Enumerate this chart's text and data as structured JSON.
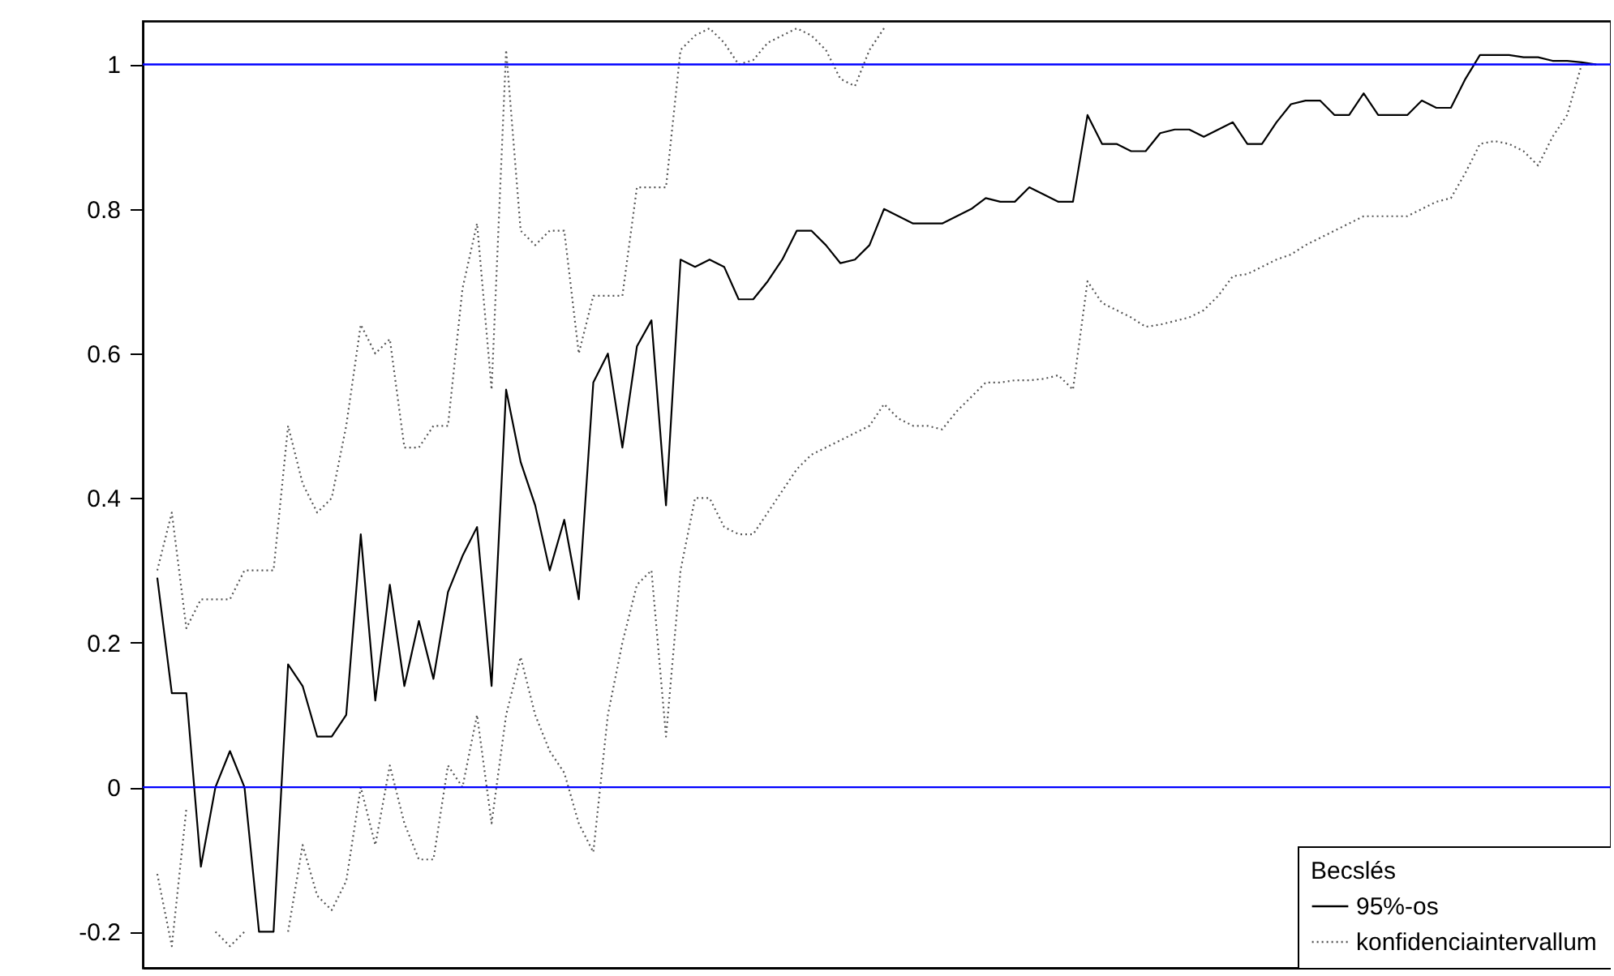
{
  "chart_data": {
    "type": "line",
    "categories": [
      null,
      null,
      null,
      null,
      null,
      null,
      null,
      null,
      null,
      null,
      null,
      null,
      null,
      null,
      null,
      null,
      null,
      null,
      null,
      null,
      null,
      null,
      null,
      null,
      null,
      null,
      null,
      null,
      null,
      null,
      null,
      null,
      null,
      null,
      null,
      null,
      null,
      null,
      null,
      null,
      null,
      null,
      null,
      null,
      null,
      null,
      null,
      null,
      null,
      null,
      null,
      null,
      null,
      null,
      null,
      null,
      null,
      null,
      null,
      null,
      null,
      null,
      null,
      null,
      null,
      null,
      null,
      null,
      null,
      null,
      null,
      null,
      null,
      null,
      null,
      null,
      null,
      null,
      null,
      null,
      null,
      null,
      null,
      null,
      null,
      null,
      null,
      null,
      null,
      null,
      null,
      null,
      null,
      null,
      null,
      null,
      null,
      null,
      null,
      null
    ],
    "legend_title": "Becslés",
    "series": [
      {
        "name": "95%-os",
        "color": "#000000",
        "line_style": "solid",
        "values": [
          0.29,
          0.13,
          0.13,
          -0.11,
          0.0,
          0.05,
          0.0,
          -0.2,
          -0.2,
          0.17,
          0.14,
          0.07,
          0.07,
          0.1,
          0.35,
          0.12,
          0.28,
          0.14,
          0.23,
          0.15,
          0.27,
          0.32,
          0.36,
          0.14,
          0.55,
          0.45,
          0.39,
          0.3,
          0.37,
          0.26,
          0.56,
          0.6,
          0.47,
          0.61,
          0.646,
          0.39,
          0.73,
          0.72,
          0.73,
          0.72,
          0.675,
          0.675,
          0.7,
          0.73,
          0.77,
          0.77,
          0.75,
          0.725,
          0.73,
          0.75,
          0.8,
          0.79,
          0.78,
          0.78,
          0.78,
          0.79,
          0.8,
          0.815,
          0.81,
          0.81,
          0.83,
          0.82,
          0.81,
          0.81,
          0.93,
          0.89,
          0.89,
          0.88,
          0.88,
          0.905,
          0.91,
          0.91,
          0.9,
          0.91,
          0.92,
          0.89,
          0.89,
          0.92,
          0.945,
          0.95,
          0.95,
          0.93,
          0.93,
          0.96,
          0.93,
          0.93,
          0.93,
          0.95,
          0.94,
          0.94,
          0.98,
          1.013,
          1.013,
          1.013,
          1.01,
          1.01,
          1.005,
          1.005,
          1.003,
          1.0
        ]
      },
      {
        "name": "konfidenciaintervallum",
        "color": "#555555",
        "line_style": "dotted",
        "values": [
          -0.12,
          -0.22,
          -0.03,
          null,
          -0.2,
          -0.22,
          -0.2,
          null,
          null,
          -0.2,
          -0.08,
          -0.15,
          -0.17,
          -0.13,
          0.0,
          -0.08,
          0.03,
          -0.05,
          -0.1,
          -0.1,
          0.03,
          0.0,
          0.1,
          -0.05,
          0.1,
          0.18,
          0.1,
          0.05,
          0.02,
          -0.05,
          -0.09,
          0.1,
          0.2,
          0.28,
          0.3,
          0.07,
          0.3,
          0.4,
          0.4,
          0.36,
          0.35,
          0.35,
          0.38,
          0.41,
          0.44,
          0.46,
          0.47,
          0.48,
          0.49,
          0.5,
          0.53,
          0.51,
          0.5,
          0.5,
          0.495,
          0.52,
          0.54,
          0.56,
          0.56,
          0.563,
          0.563,
          0.565,
          0.57,
          0.55,
          0.7,
          0.67,
          0.66,
          0.65,
          0.637,
          0.64,
          0.645,
          0.65,
          0.66,
          0.68,
          0.707,
          0.71,
          0.72,
          0.73,
          0.737,
          0.75,
          0.76,
          0.77,
          0.78,
          0.79,
          0.79,
          0.79,
          0.79,
          0.8,
          0.81,
          0.815,
          0.85,
          0.89,
          0.894,
          0.89,
          0.88,
          0.86,
          0.9,
          0.93,
          1.0,
          1.0
        ]
      },
      {
        "color": "#555555",
        "line_style": "dotted",
        "values": [
          0.3,
          0.38,
          0.22,
          0.26,
          0.26,
          0.26,
          0.3,
          0.3,
          0.3,
          0.5,
          0.42,
          0.38,
          0.4,
          0.5,
          0.64,
          0.6,
          0.62,
          0.47,
          0.47,
          0.5,
          0.5,
          0.69,
          0.78,
          0.55,
          1.02,
          0.77,
          0.75,
          0.77,
          0.77,
          0.6,
          0.68,
          0.68,
          0.68,
          0.83,
          0.83,
          0.83,
          1.02,
          1.04,
          1.05,
          1.03,
          1.0,
          1.006,
          1.03,
          1.04,
          1.05,
          1.04,
          1.02,
          0.98,
          0.97,
          1.02,
          1.05,
          null,
          null,
          null,
          null,
          null,
          null,
          null,
          null,
          null,
          null,
          null,
          null,
          null,
          null,
          null,
          null,
          null,
          null,
          null,
          null,
          null,
          null,
          null,
          null,
          null,
          null,
          null,
          null,
          null,
          null,
          null,
          null,
          null,
          null,
          null,
          null,
          null,
          null,
          null,
          null,
          null,
          null,
          null,
          null,
          null,
          null,
          null,
          null,
          null
        ]
      }
    ],
    "ylim": [
      -0.25,
      1.06
    ],
    "yticks": [
      -0.2,
      0,
      0.2,
      0.4,
      0.6,
      0.8,
      1
    ],
    "ref_lines": [
      {
        "axis": "y",
        "value": 0,
        "color": "#0000ff"
      },
      {
        "axis": "y",
        "value": 1,
        "color": "#0000ff"
      }
    ],
    "tick_labels": "y",
    "grid": false,
    "legend": "bottom right"
  }
}
